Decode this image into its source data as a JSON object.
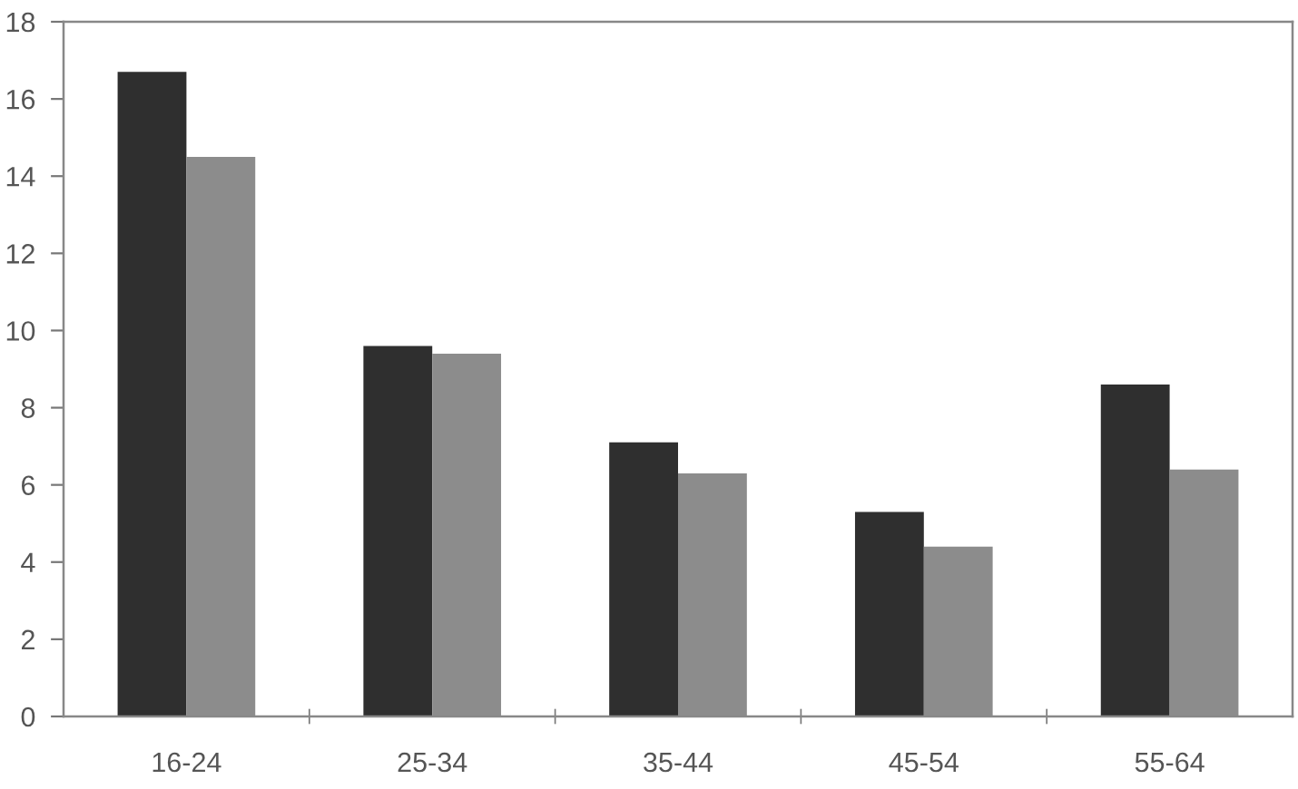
{
  "chart_data": {
    "type": "bar",
    "categories": [
      "16-24",
      "25-34",
      "35-44",
      "45-54",
      "55-64"
    ],
    "series": [
      {
        "color": "#2f2f2f",
        "values": [
          16.7,
          9.6,
          7.1,
          5.3,
          8.6
        ]
      },
      {
        "color": "#8c8c8c",
        "values": [
          14.5,
          9.4,
          6.3,
          4.4,
          6.4
        ]
      }
    ],
    "ylim": [
      0,
      18
    ],
    "yticks": [
      0,
      2,
      4,
      6,
      8,
      10,
      12,
      14,
      16,
      18
    ]
  }
}
